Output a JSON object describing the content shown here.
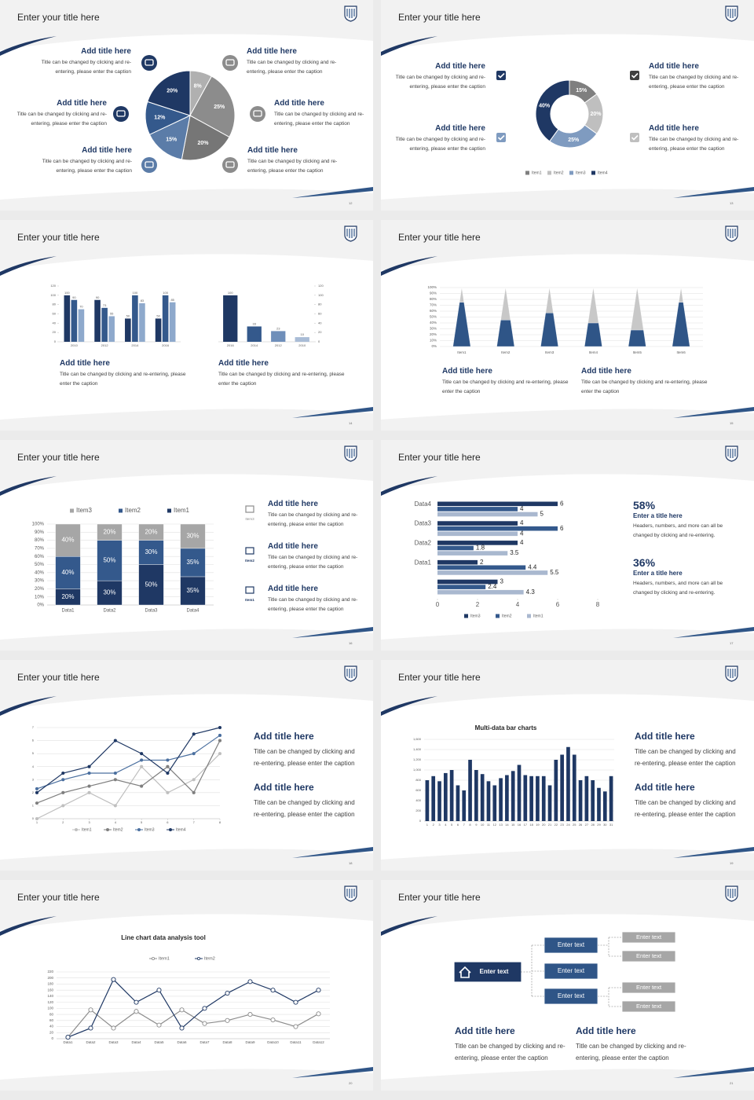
{
  "slides": [
    {
      "title": "Enter your title here",
      "page": "12",
      "chart_data": {
        "type": "pie",
        "values": [
          8,
          25,
          20,
          15,
          12,
          20
        ],
        "value_labels": [
          "8%",
          "25%",
          "20%",
          "15%",
          "12%",
          "20%"
        ],
        "colors": [
          "#b0b0b0",
          "#8c8c8c",
          "#767676",
          "#5b7ca8",
          "#34598c",
          "#1f3864"
        ]
      },
      "blocks": [
        {
          "heading": "Add title here",
          "text": "Title can be changed by clicking and re-entering, please enter the caption"
        },
        {
          "heading": "Add title here",
          "text": "Title can be changed by clicking and re-entering, please enter the caption"
        },
        {
          "heading": "Add title here",
          "text": "Title can be changed by clicking and re-entering, please enter the caption"
        },
        {
          "heading": "Add title here",
          "text": "Title can be changed by clicking and re-entering, please enter the caption"
        },
        {
          "heading": "Add title here",
          "text": "Title can be changed by clicking and re-entering, please enter the caption"
        },
        {
          "heading": "Add title here",
          "text": "Title can be changed by clicking and re-entering, please enter the caption"
        }
      ]
    },
    {
      "title": "Enter your title here",
      "page": "13",
      "chart_data": {
        "type": "donut",
        "categories": [
          "Item1",
          "Item2",
          "Item3",
          "Item4"
        ],
        "values": [
          15,
          20,
          25,
          40
        ],
        "value_labels": [
          "15%",
          "20%",
          "25%",
          "40%"
        ],
        "colors": [
          "#7f7f7f",
          "#bfbfbf",
          "#7f9bc0",
          "#1f3864"
        ]
      },
      "blocks": [
        {
          "heading": "Add title here",
          "text": "Title can be changed by clicking and re-entering, please enter the caption"
        },
        {
          "heading": "Add title here",
          "text": "Title can be changed by clicking and re-entering, please enter the caption"
        },
        {
          "heading": "Add title here",
          "text": "Title can be changed by clicking and re-entering, please enter the caption"
        },
        {
          "heading": "Add title here",
          "text": "Title can be changed by clicking and re-entering, please enter the caption"
        }
      ]
    },
    {
      "title": "Enter your title here",
      "page": "14",
      "chart_data": [
        {
          "type": "bar",
          "categories": [
            "2010",
            "2012",
            "2014",
            "2016"
          ],
          "series": [
            {
              "color": "#1f3864",
              "values": [
                100,
                90,
                50,
                50
              ]
            },
            {
              "color": "#34598c",
              "values": [
                90,
                73,
                100,
                100
              ]
            },
            {
              "color": "#8ea9cc",
              "values": [
                70,
                55,
                83,
                85
              ]
            }
          ],
          "ylim": [
            0,
            120
          ],
          "yticks": [
            0,
            20,
            40,
            60,
            80,
            100,
            120
          ]
        },
        {
          "type": "bar",
          "categories": [
            "2016",
            "2014",
            "2012",
            "2010"
          ],
          "values": [
            100,
            33,
            23,
            10
          ],
          "colors": [
            "#1f3864",
            "#34598c",
            "#6f8fba",
            "#a9bcd6"
          ],
          "ylim": [
            0,
            120
          ],
          "yticks": [
            0,
            20,
            40,
            60,
            80,
            100,
            120
          ],
          "y_axis_side": "right"
        }
      ],
      "blocks": [
        {
          "heading": "Add title here",
          "text": "Title can be changed by clicking and re-entering, please enter the caption"
        },
        {
          "heading": "Add title here",
          "text": "Title can be changed by clicking and re-entering, please enter the caption"
        }
      ]
    },
    {
      "title": "Enter your title here",
      "page": "15",
      "chart_data": {
        "type": "pyramid",
        "categories": [
          "Item1",
          "Item2",
          "Item3",
          "Item4",
          "Item5",
          "Item6"
        ],
        "series": [
          {
            "color": "#2f5587",
            "values": [
              75,
              45,
              57,
              40,
              28,
              75
            ]
          },
          {
            "color": "#c8c8c8",
            "values": [
              25,
              55,
              43,
              60,
              72,
              25
            ]
          }
        ],
        "ylim": [
          0,
          100
        ],
        "yticks": [
          {
            "value": 0,
            "label": "0%"
          },
          {
            "value": 10,
            "label": "10%"
          },
          {
            "value": 20,
            "label": "20%"
          },
          {
            "value": 30,
            "label": "30%"
          },
          {
            "value": 40,
            "label": "40%"
          },
          {
            "value": 50,
            "label": "50%"
          },
          {
            "value": 60,
            "label": "60%"
          },
          {
            "value": 70,
            "label": "70%"
          },
          {
            "value": 80,
            "label": "80%"
          },
          {
            "value": 90,
            "label": "90%"
          },
          {
            "value": 100,
            "label": "100%"
          }
        ],
        "grid": true
      },
      "blocks": [
        {
          "heading": "Add title here",
          "text": "Title can be changed by clicking and re-entering, please enter the caption"
        },
        {
          "heading": "Add title here",
          "text": "Title can be changed by clicking and re-entering, please enter the caption"
        }
      ]
    },
    {
      "title": "Enter your title here",
      "page": "16",
      "chart_data": {
        "type": "bar",
        "stacked": true,
        "categories": [
          "Data1",
          "Data2",
          "Data3",
          "Data4"
        ],
        "series": [
          {
            "name": "Item1",
            "color": "#1f3864",
            "values": [
              20,
              30,
              50,
              35
            ],
            "value_labels": [
              "20%",
              "30%",
              "50%",
              "35%"
            ]
          },
          {
            "name": "Item2",
            "color": "#34598c",
            "values": [
              40,
              50,
              30,
              35
            ],
            "value_labels": [
              "40%",
              "50%",
              "30%",
              "35%"
            ]
          },
          {
            "name": "Item3",
            "color": "#a6a6a6",
            "values": [
              40,
              20,
              20,
              30
            ],
            "value_labels": [
              "40%",
              "20%",
              "20%",
              "30%"
            ]
          }
        ],
        "ylim": [
          0,
          100
        ],
        "yticks": [
          {
            "value": 0,
            "label": "0%"
          },
          {
            "value": 10,
            "label": "10%"
          },
          {
            "value": 20,
            "label": "20%"
          },
          {
            "value": 30,
            "label": "30%"
          },
          {
            "value": 40,
            "label": "40%"
          },
          {
            "value": 50,
            "label": "50%"
          },
          {
            "value": 60,
            "label": "60%"
          },
          {
            "value": 70,
            "label": "70%"
          },
          {
            "value": 80,
            "label": "80%"
          },
          {
            "value": 90,
            "label": "90%"
          },
          {
            "value": 100,
            "label": "100%"
          }
        ],
        "grid": true,
        "legend": "top"
      },
      "blocks": [
        {
          "heading": "Add title here",
          "text": "Title can be changed by clicking and re-entering, please enter the caption"
        },
        {
          "heading": "Add title here",
          "text": "Title can be changed by clicking and re-entering, please enter the caption"
        },
        {
          "heading": "Add title here",
          "text": "Title can be changed by clicking and re-entering, please enter the caption"
        }
      ]
    },
    {
      "title": "Enter your title here",
      "page": "17",
      "chart_data": {
        "type": "barh",
        "categories": [
          null,
          "Data1",
          "Data2",
          "Data3",
          "Data4"
        ],
        "series": [
          {
            "name": "Item3",
            "color": "#1f3864",
            "values": [
              3,
              2,
              4,
              4,
              6
            ]
          },
          {
            "name": "Item2",
            "color": "#34598c",
            "values": [
              2.4,
              4.4,
              1.8,
              6,
              4
            ]
          },
          {
            "name": "Item1",
            "color": "#a9b8cf",
            "values": [
              4.3,
              5.5,
              3.5,
              4,
              5
            ]
          }
        ],
        "xlim": [
          0,
          8
        ],
        "xticks": [
          0,
          2,
          4,
          6,
          8
        ],
        "legend": "bottom"
      },
      "stats": [
        {
          "value": "58%",
          "heading": "Enter a title here",
          "text": "Headers, numbers, and more can all be changed by clicking and re-entering."
        },
        {
          "value": "36%",
          "heading": "Enter a title here",
          "text": "Headers, numbers, and more can all be changed by clicking and re-entering."
        }
      ]
    },
    {
      "title": "Enter your title here",
      "page": "18",
      "chart_data": {
        "type": "line",
        "x": [
          1,
          2,
          3,
          4,
          5,
          6,
          7,
          8
        ],
        "xlim": [
          1,
          8
        ],
        "xticks": [
          1,
          2,
          3,
          4,
          5,
          6,
          7,
          8
        ],
        "ylim": [
          0,
          7
        ],
        "yticks": [
          0,
          1,
          2,
          3,
          4,
          5,
          6,
          7
        ],
        "grid": true,
        "legend": "bottom",
        "series": [
          {
            "name": "Item1",
            "color": "#bfbfbf",
            "values": [
              0,
              1,
              2,
              1,
              4,
              2,
              3,
              5
            ]
          },
          {
            "name": "Item2",
            "color": "#7f7f7f",
            "values": [
              1.2,
              2,
              2.5,
              3,
              2.5,
              4,
              2,
              6
            ]
          },
          {
            "name": "Item3",
            "color": "#4a6f9f",
            "values": [
              2.3,
              3,
              3.5,
              3.5,
              4.5,
              4.5,
              5,
              6.4
            ]
          },
          {
            "name": "Item4",
            "color": "#1f3864",
            "values": [
              2,
              3.5,
              4,
              6,
              5,
              3.5,
              6.5,
              7
            ]
          }
        ]
      },
      "blocks": [
        {
          "heading": "Add title here",
          "text": "Title can be changed by clicking and re-entering, please enter the caption"
        },
        {
          "heading": "Add title here",
          "text": "Title can be changed by clicking and re-entering, please enter the caption"
        }
      ]
    },
    {
      "title": "Enter your title here",
      "page": "19",
      "chart_data": {
        "type": "bar",
        "title": "Multi-data bar charts",
        "categories": [
          "1",
          "2",
          "3",
          "4",
          "5",
          "6",
          "7",
          "8",
          "9",
          "10",
          "11",
          "12",
          "13",
          "14",
          "15",
          "16",
          "17",
          "18",
          "19",
          "20",
          "21",
          "22",
          "23",
          "24",
          "25",
          "26",
          "27",
          "28",
          "29",
          "30",
          "31"
        ],
        "values": [
          800,
          880,
          780,
          940,
          1000,
          700,
          600,
          1200,
          1000,
          920,
          780,
          700,
          840,
          900,
          980,
          1100,
          900,
          880,
          880,
          880,
          700,
          1200,
          1300,
          1450,
          1300,
          800,
          880,
          800,
          650,
          580,
          880
        ],
        "color": "#1f3864",
        "ylim": [
          0,
          1600
        ],
        "yticks": [
          0,
          200,
          400,
          600,
          800,
          {
            "value": 1000,
            "label": "1,000"
          },
          {
            "value": 1200,
            "label": "1,200"
          },
          {
            "value": 1400,
            "label": "1,400"
          },
          {
            "value": 1600,
            "label": "1,600"
          }
        ],
        "grid": true
      },
      "blocks": [
        {
          "heading": "Add title here",
          "text": "Title can be changed by clicking and re-entering, please enter the caption"
        },
        {
          "heading": "Add title here",
          "text": "Title can be changed by clicking and re-entering, please enter the caption"
        }
      ]
    },
    {
      "title": "Enter your title here",
      "page": "20",
      "chart_data": {
        "type": "line",
        "title": "Line chart data analysis tool",
        "categories": [
          "Data1",
          "Data2",
          "Data3",
          "Data4",
          "Data5",
          "Data6",
          "Data7",
          "Data8",
          "Data9",
          "Data10",
          "Data11",
          "Data12"
        ],
        "series": [
          {
            "name": "Item1",
            "color": "#8c8c8c",
            "values": [
              5,
              95,
              35,
              90,
              45,
              95,
              50,
              60,
              80,
              62,
              40,
              82
            ]
          },
          {
            "name": "Item2",
            "color": "#1f3864",
            "values": [
              5,
              35,
              195,
              120,
              160,
              35,
              100,
              150,
              188,
              160,
              120,
              160
            ]
          }
        ],
        "ylim": [
          0,
          220
        ],
        "yticks": [
          0,
          20,
          40,
          60,
          80,
          100,
          120,
          140,
          160,
          180,
          200,
          220
        ],
        "grid": true,
        "legend": "top",
        "markers": "open-circle"
      }
    },
    {
      "title": "Enter your title here",
      "page": "21",
      "nodes": [
        "Enter text",
        "Enter text",
        "Enter text",
        "Enter text",
        "Enter text",
        "Enter text",
        "Enter text",
        "Enter text"
      ],
      "blocks": [
        {
          "heading": "Add title here",
          "text": "Title can be changed by clicking and re-entering, please enter the caption"
        },
        {
          "heading": "Add title here",
          "text": "Title can be changed by clicking and re-entering, please enter the caption"
        }
      ]
    }
  ]
}
